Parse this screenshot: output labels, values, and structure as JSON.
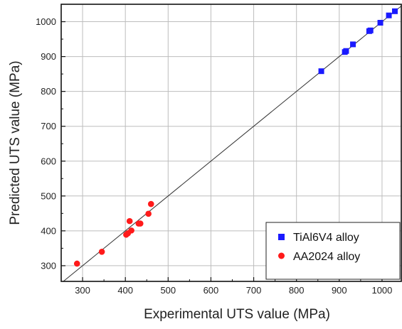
{
  "chart_data": {
    "type": "scatter",
    "title": "",
    "xlabel": "Experimental UTS value (MPa)",
    "ylabel": "Predicted UTS value (MPa)",
    "xlim": [
      250,
      1045
    ],
    "ylim": [
      255,
      1050
    ],
    "xticks": [
      300,
      400,
      500,
      600,
      700,
      800,
      900,
      1000
    ],
    "yticks": [
      300,
      400,
      500,
      600,
      700,
      800,
      900,
      1000
    ],
    "xtick_labels": [
      "300",
      "400",
      "500",
      "600",
      "700",
      "800",
      "900",
      "1000"
    ],
    "ytick_labels": [
      "300",
      "400",
      "500",
      "600",
      "700",
      "800",
      "900",
      "1000"
    ],
    "grid": true,
    "legend_position": "bottom-right",
    "reference_line": {
      "style": "y = x",
      "color": "#333333"
    },
    "series": [
      {
        "name": "TiAl6V4 alloy",
        "marker": "square",
        "color": "#1a1aff",
        "points": [
          [
            858,
            858
          ],
          [
            913,
            913
          ],
          [
            916,
            916
          ],
          [
            932,
            935
          ],
          [
            970,
            973
          ],
          [
            973,
            975
          ],
          [
            996,
            997
          ],
          [
            1016,
            1018
          ],
          [
            1030,
            1030
          ]
        ]
      },
      {
        "name": "AA2024 alloy",
        "marker": "circle",
        "color": "#ff1a1a",
        "points": [
          [
            287,
            306
          ],
          [
            345,
            340
          ],
          [
            402,
            389
          ],
          [
            406,
            393
          ],
          [
            410,
            428
          ],
          [
            414,
            401
          ],
          [
            431,
            421
          ],
          [
            435,
            421
          ],
          [
            454,
            449
          ],
          [
            460,
            477
          ]
        ]
      }
    ]
  }
}
